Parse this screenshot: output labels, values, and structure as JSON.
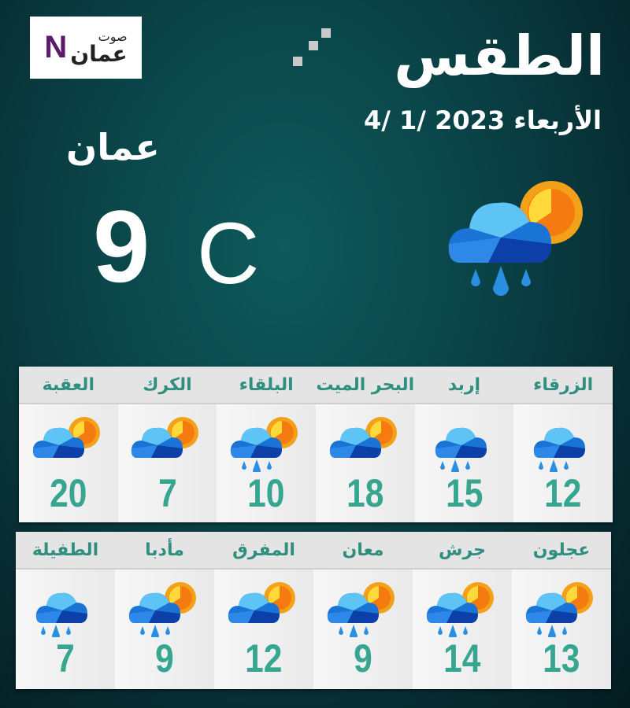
{
  "logo": {
    "mark": "N",
    "text_top": "صوت",
    "text_bottom": "عمان"
  },
  "header": {
    "title": "الطقس",
    "date": "الأربعاء 2023 /1 /4"
  },
  "main": {
    "city": "عمان",
    "temperature": "9",
    "unit": "C",
    "icon": "partly-cloudy-rain-icon"
  },
  "colors": {
    "city_name": "#2e8f7f",
    "temperature": "#36a690",
    "panel": "#f0f0f0"
  },
  "rows": [
    [
      {
        "city": "الزرقاء",
        "temp": "12",
        "icon": "rain"
      },
      {
        "city": "إربد",
        "temp": "15",
        "icon": "rain"
      },
      {
        "city": "البحر الميت",
        "temp": "18",
        "icon": "partly-cloudy"
      },
      {
        "city": "البلقاء",
        "temp": "10",
        "icon": "partly-cloudy-rain"
      },
      {
        "city": "الكرك",
        "temp": "7",
        "icon": "partly-cloudy"
      },
      {
        "city": "العقبة",
        "temp": "20",
        "icon": "partly-cloudy"
      }
    ],
    [
      {
        "city": "عجلون",
        "temp": "13",
        "icon": "partly-cloudy-rain"
      },
      {
        "city": "جرش",
        "temp": "14",
        "icon": "partly-cloudy-rain"
      },
      {
        "city": "معان",
        "temp": "9",
        "icon": "partly-cloudy-rain"
      },
      {
        "city": "المفرق",
        "temp": "12",
        "icon": "partly-cloudy"
      },
      {
        "city": "مأدبا",
        "temp": "9",
        "icon": "partly-cloudy-rain"
      },
      {
        "city": "الطفيلة",
        "temp": "7",
        "icon": "rain"
      }
    ]
  ]
}
